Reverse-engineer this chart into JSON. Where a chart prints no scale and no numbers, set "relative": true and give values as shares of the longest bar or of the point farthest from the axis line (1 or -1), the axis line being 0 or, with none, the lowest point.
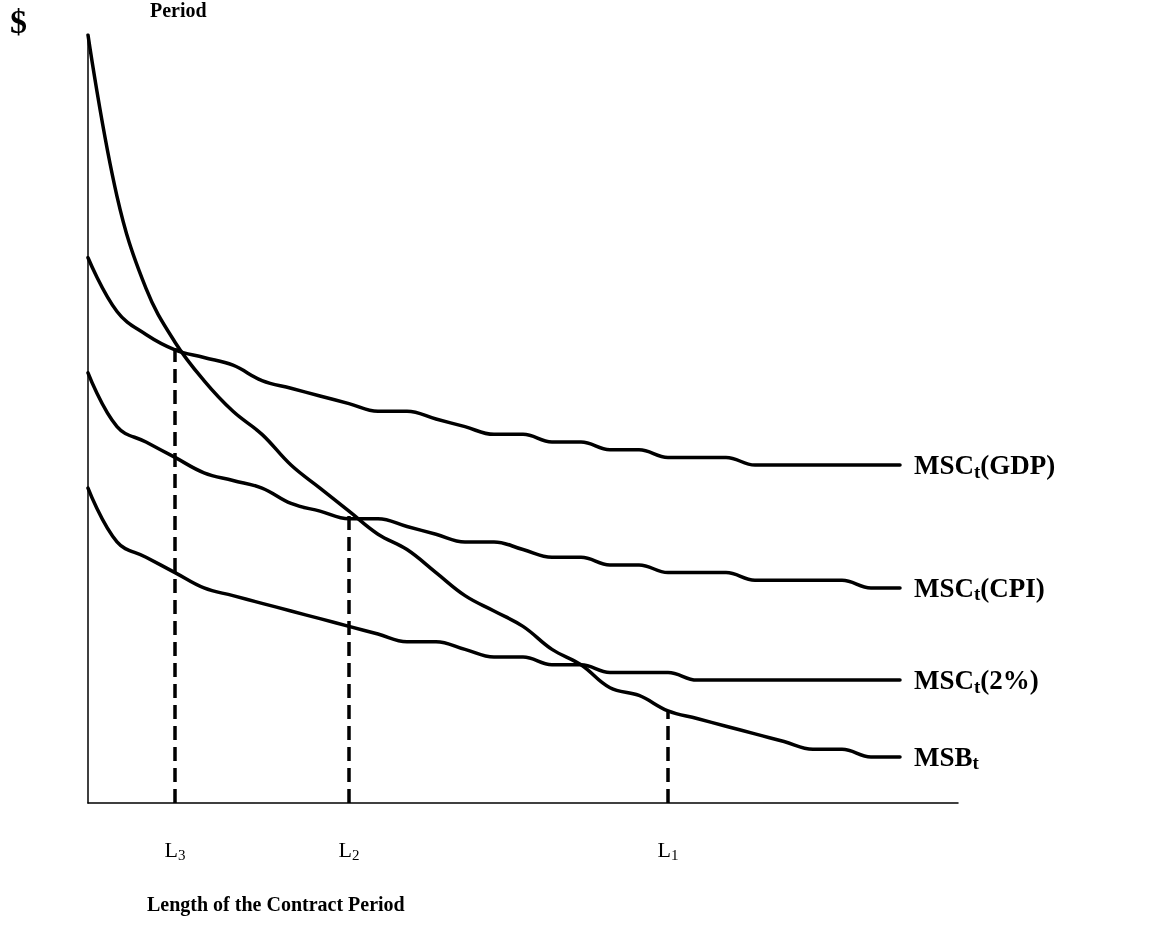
{
  "chart_data": {
    "type": "line",
    "relative": true,
    "xlabel": "Length of the Contract Period",
    "ylabel": "$",
    "annotations": [
      "Period"
    ],
    "categories": [
      null,
      null,
      null,
      "L$_{3}$",
      null,
      null,
      null,
      null,
      null,
      "L$_{2}$",
      null,
      null,
      null,
      null,
      null,
      null,
      null,
      null,
      null,
      null,
      "L$_{1}$",
      null,
      null,
      null,
      null,
      null,
      null,
      null,
      null,
      null,
      null
    ],
    "series": [
      {
        "name": "MSC$_{t}$(GDP)",
        "color": "#000000",
        "values": [
          0.71,
          0.64,
          0.61,
          0.59,
          0.58,
          0.57,
          0.55,
          0.54,
          0.53,
          0.52,
          0.51,
          0.51,
          0.5,
          0.49,
          0.48,
          0.48,
          0.47,
          0.47,
          0.46,
          0.46,
          0.45,
          0.45,
          0.45,
          0.44,
          0.44,
          0.44,
          0.44,
          0.44,
          0.44,
          null,
          null
        ]
      },
      {
        "name": "MSC$_{t}$(CPI)",
        "color": "#000000",
        "values": [
          0.56,
          0.49,
          0.47,
          0.45,
          0.43,
          0.42,
          0.41,
          0.39,
          0.38,
          0.37,
          0.37,
          0.36,
          0.35,
          0.34,
          0.34,
          0.33,
          0.32,
          0.32,
          0.31,
          0.31,
          0.3,
          0.3,
          0.3,
          0.29,
          0.29,
          0.29,
          0.29,
          0.28,
          0.28,
          null,
          null
        ]
      },
      {
        "name": "MSC$_{t}$(2%)",
        "color": "#000000",
        "values": [
          0.41,
          0.34,
          0.32,
          0.3,
          0.28,
          0.27,
          0.26,
          0.25,
          0.24,
          0.23,
          0.22,
          0.21,
          0.21,
          0.2,
          0.19,
          0.19,
          0.18,
          0.18,
          0.17,
          0.17,
          0.17,
          0.16,
          0.16,
          0.16,
          0.16,
          0.16,
          0.16,
          0.16,
          0.16,
          null,
          null
        ]
      },
      {
        "name": "MSB$_{t}$",
        "color": "#000000",
        "values": [
          1,
          0.79,
          0.67,
          0.6,
          0.55,
          0.51,
          0.48,
          0.44,
          0.41,
          0.38,
          0.35,
          0.33,
          0.3,
          0.27,
          0.25,
          0.23,
          0.2,
          0.18,
          0.15,
          0.14,
          0.12,
          0.11,
          0.1,
          0.09,
          0.08,
          0.07,
          0.07,
          0.06,
          0.06,
          null,
          null
        ]
      }
    ],
    "ref_lines": [
      {
        "axis": "x",
        "value": "L$_{3}$",
        "color": "#000000",
        "line_style": "dashed"
      },
      {
        "axis": "x",
        "value": "L$_{2}$",
        "color": "#000000",
        "line_style": "dashed"
      },
      {
        "axis": "x",
        "value": "L$_{1}$",
        "color": "#000000",
        "line_style": "dashed"
      }
    ],
    "marker": "none",
    "line_style": "solid",
    "grid": false,
    "legend": false
  }
}
